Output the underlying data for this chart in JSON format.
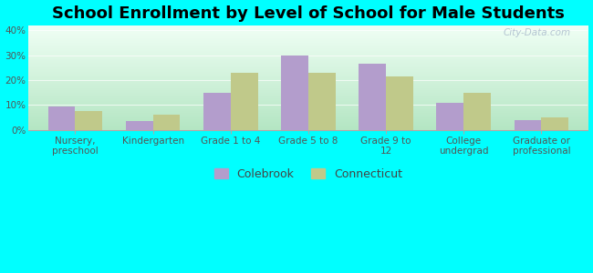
{
  "title": "School Enrollment by Level of School for Male Students",
  "categories": [
    "Nursery,\npreschool",
    "Kindergarten",
    "Grade 1 to 4",
    "Grade 5 to 8",
    "Grade 9 to\n12",
    "College\nundergrad",
    "Graduate or\nprofessional"
  ],
  "colebrook": [
    9.5,
    3.5,
    15.0,
    30.0,
    26.5,
    11.0,
    4.0
  ],
  "connecticut": [
    7.5,
    6.0,
    23.0,
    23.0,
    21.5,
    15.0,
    5.0
  ],
  "colebrook_color": "#b39dcc",
  "connecticut_color": "#c0c98a",
  "background_outer": "#00FFFF",
  "ylabel_ticks": [
    "0%",
    "10%",
    "20%",
    "30%",
    "40%"
  ],
  "ytick_vals": [
    0,
    10,
    20,
    30,
    40
  ],
  "ylim": [
    0,
    42
  ],
  "legend_labels": [
    "Colebrook",
    "Connecticut"
  ],
  "title_fontsize": 13,
  "tick_fontsize": 7.5,
  "legend_fontsize": 9,
  "bar_width": 0.35
}
